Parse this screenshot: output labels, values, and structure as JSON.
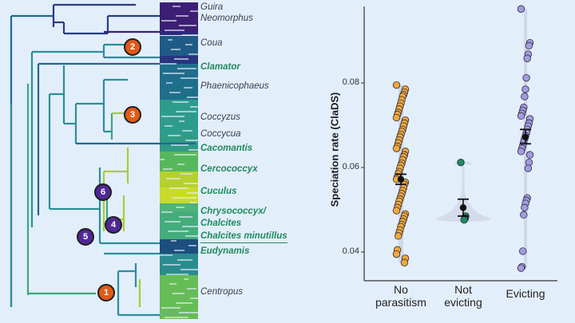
{
  "tree": {
    "taxa": [
      {
        "name": "Guira",
        "parasite": false
      },
      {
        "name": "Neomorphus",
        "parasite": false
      },
      {
        "name": "Coua",
        "parasite": false
      },
      {
        "name": "Clamator",
        "parasite": true
      },
      {
        "name": "Phaenicophaeus",
        "parasite": false
      },
      {
        "name": "Coccyzus",
        "parasite": false
      },
      {
        "name": "Coccycua",
        "parasite": false
      },
      {
        "name": "Cacomantis",
        "parasite": true
      },
      {
        "name": "Cercococcyx",
        "parasite": true
      },
      {
        "name": "Cuculus",
        "parasite": true
      },
      {
        "name": "Chrysococcyx/",
        "parasite": true
      },
      {
        "name": "Chalcites",
        "parasite": true
      },
      {
        "name": "Chalcites minutillus",
        "parasite": true,
        "underlined": true
      },
      {
        "name": "Eudynamis",
        "parasite": true
      },
      {
        "name": "Centropus",
        "parasite": false
      }
    ],
    "nodes": [
      {
        "label": "1",
        "color": "orange"
      },
      {
        "label": "2",
        "color": "orange"
      },
      {
        "label": "3",
        "color": "orange"
      },
      {
        "label": "4",
        "color": "purple"
      },
      {
        "label": "5",
        "color": "purple"
      },
      {
        "label": "6",
        "color": "purple"
      }
    ],
    "colors": {
      "label_parasite": "#1f8a5e",
      "label_nonparasite": "#3b3f4a",
      "badge_orange": "#e15a16",
      "badge_purple": "#4f2896"
    }
  },
  "chart_data": {
    "type": "scatter",
    "title": "",
    "xlabel": "",
    "ylabel": "Speciation rate (ClaDS)",
    "ylim": [
      0.033,
      0.098
    ],
    "yticks": [
      0.04,
      0.06,
      0.08
    ],
    "ytick_labels": [
      "0.04",
      "0.06",
      "0.08"
    ],
    "categories": [
      "No\nparasitism",
      "Not\nevicting",
      "Evicting"
    ],
    "category_labels": [
      [
        "No",
        "parasitism"
      ],
      [
        "Not",
        "evicting"
      ],
      [
        "Evicting"
      ]
    ],
    "series": [
      {
        "name": "No parasitism",
        "color": "#f2a93b",
        "mean": 0.0572,
        "se_low": 0.056,
        "se_high": 0.0584,
        "values": [
          0.0795,
          0.0785,
          0.0778,
          0.0772,
          0.0768,
          0.076,
          0.0752,
          0.0745,
          0.0738,
          0.073,
          0.0725,
          0.0718,
          0.0712,
          0.0705,
          0.0698,
          0.069,
          0.0685,
          0.0678,
          0.0672,
          0.0665,
          0.0658,
          0.065,
          0.0645,
          0.0638,
          0.063,
          0.0625,
          0.0618,
          0.061,
          0.0605,
          0.0598,
          0.059,
          0.0585,
          0.0578,
          0.0572,
          0.0565,
          0.056,
          0.0552,
          0.0545,
          0.0538,
          0.0532,
          0.0525,
          0.052,
          0.0512,
          0.0505,
          0.0498,
          0.049,
          0.0485,
          0.0478,
          0.0472,
          0.0465,
          0.046,
          0.0452,
          0.0445,
          0.0438,
          0.0405,
          0.0395,
          0.0385,
          0.0375
        ]
      },
      {
        "name": "Not evicting",
        "color": "#1f8a5e",
        "mean": 0.0505,
        "se_low": 0.0485,
        "se_high": 0.0525,
        "values": [
          0.0612,
          0.0485,
          0.048,
          0.0478,
          0.0476
        ]
      },
      {
        "name": "Evicting",
        "color": "#a39be0",
        "mean": 0.0672,
        "se_low": 0.0656,
        "se_high": 0.069,
        "values": [
          0.0975,
          0.0895,
          0.0888,
          0.0868,
          0.0858,
          0.0812,
          0.0785,
          0.0768,
          0.0742,
          0.0735,
          0.0728,
          0.0722,
          0.0715,
          0.0705,
          0.0698,
          0.069,
          0.0682,
          0.0675,
          0.0668,
          0.066,
          0.0652,
          0.0645,
          0.0638,
          0.063,
          0.0612,
          0.0598,
          0.0528,
          0.0522,
          0.0515,
          0.0505,
          0.0488,
          0.0402,
          0.0365,
          0.0362
        ]
      }
    ],
    "violins": true,
    "grid": false,
    "legend": "none"
  }
}
